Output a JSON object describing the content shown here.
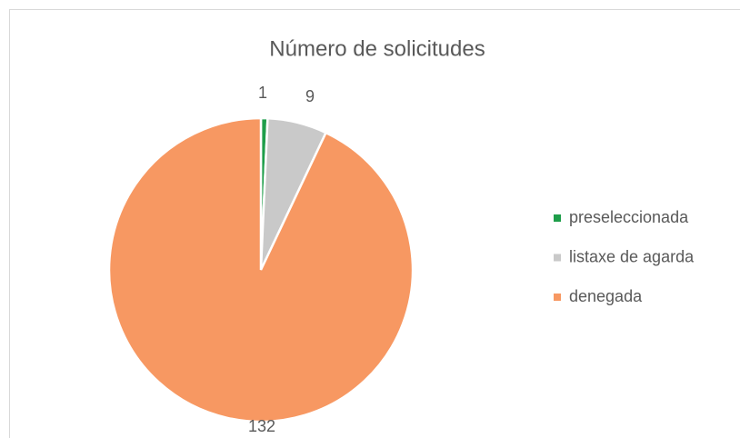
{
  "chart_data": {
    "type": "pie",
    "title": "Número de solicitudes",
    "categories": [
      "preseleccionada",
      "listaxe de agarda",
      "denegada"
    ],
    "values": [
      1,
      9,
      132
    ],
    "colors": [
      "#1e9e4a",
      "#c9c9c9",
      "#f79862"
    ],
    "legend": "right"
  }
}
